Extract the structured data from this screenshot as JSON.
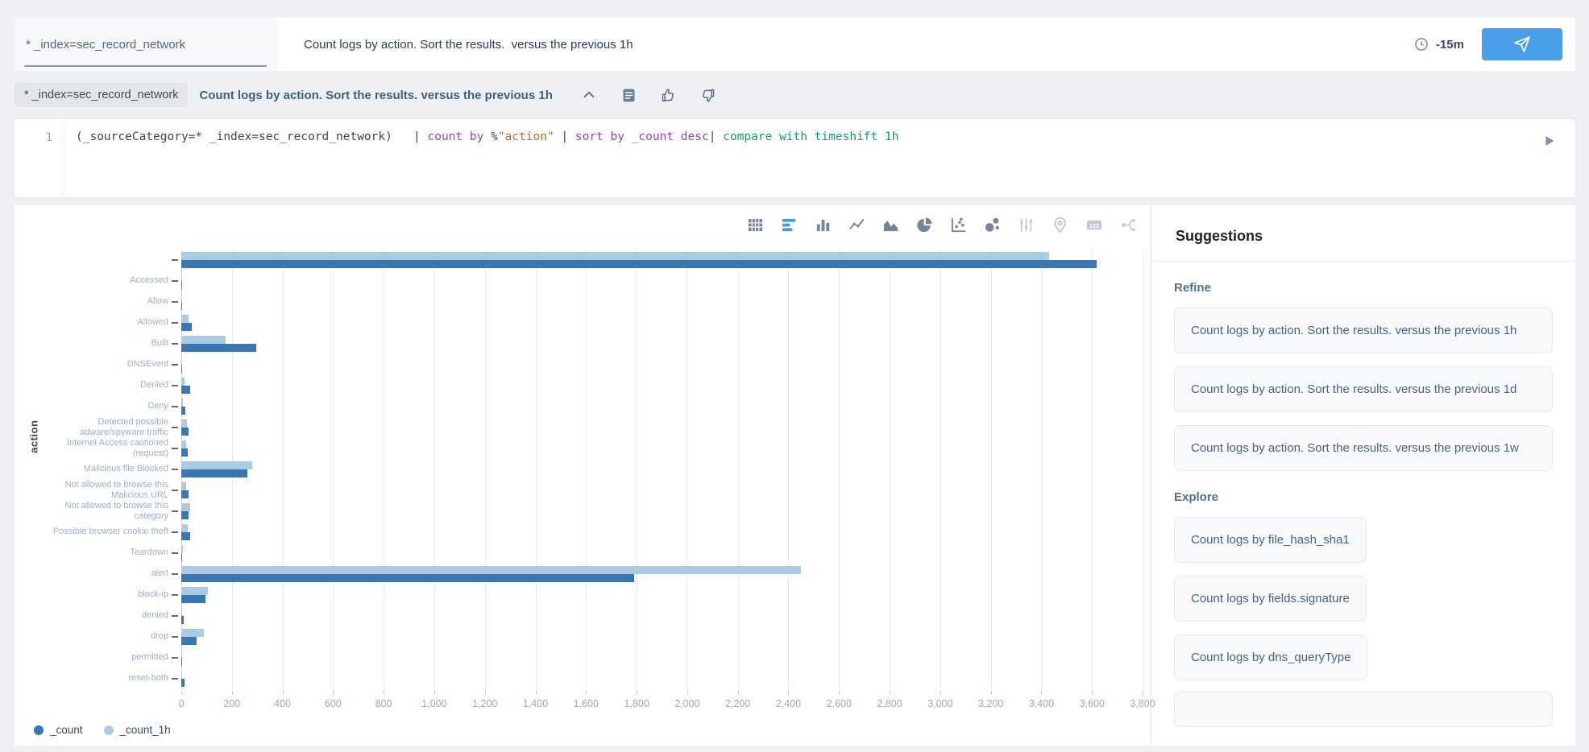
{
  "topbar": {
    "scope_value": "* _index=sec_record_network",
    "query_value": "Count logs by action. Sort the results.  versus the previous 1h",
    "time_label": "-15m"
  },
  "query_row": {
    "scope_chip": "* _index=sec_record_network",
    "query_text": "Count logs by action. Sort the results. versus the previous 1h",
    "icons": [
      "chevron-up-icon",
      "summary-icon",
      "thumbs-up-icon",
      "thumbs-down-icon"
    ]
  },
  "editor": {
    "line_number": "1",
    "run_icon": "play-icon",
    "tokens": [
      {
        "text": "(_sourceCategory=* _index=sec_record_network)   ",
        "color": "#3e4450"
      },
      {
        "text": "| ",
        "color": "#3e4450"
      },
      {
        "text": "count by ",
        "color": "#9b3fb5"
      },
      {
        "text": "%",
        "color": "#3e4450"
      },
      {
        "text": "\"action\"",
        "color": "#c2692e"
      },
      {
        "text": " | ",
        "color": "#3e4450"
      },
      {
        "text": "sort by _count desc",
        "color": "#9b3fb5"
      },
      {
        "text": "| ",
        "color": "#3e4450"
      },
      {
        "text": "compare with timeshift 1h",
        "color": "#169a70"
      }
    ]
  },
  "chart_toolbar": {
    "icons": [
      {
        "name": "table-icon",
        "state": "default"
      },
      {
        "name": "bar-chart-icon",
        "state": "active"
      },
      {
        "name": "column-chart-icon",
        "state": "default"
      },
      {
        "name": "line-chart-icon",
        "state": "default"
      },
      {
        "name": "area-chart-icon",
        "state": "default"
      },
      {
        "name": "pie-chart-icon",
        "state": "default"
      },
      {
        "name": "scatter-plot-icon",
        "state": "default"
      },
      {
        "name": "bubble-chart-icon",
        "state": "default"
      },
      {
        "name": "sliders-icon",
        "state": "disabled"
      },
      {
        "name": "map-pin-icon",
        "state": "disabled"
      },
      {
        "name": "single-value-icon",
        "state": "disabled"
      },
      {
        "name": "flow-diagram-icon",
        "state": "disabled"
      }
    ]
  },
  "chart_data": {
    "type": "bar",
    "orientation": "horizontal",
    "title": "",
    "xlabel": "",
    "ylabel": "action",
    "xlim": [
      0,
      3800
    ],
    "tick_step": 200,
    "grid": true,
    "legend_position": "bottom-left",
    "categories": [
      "",
      "Accessed",
      "Allow",
      "Allowed",
      "Built",
      "DNSEvent",
      "Denied",
      "Deny",
      "Detected possible adware/spyware traffic",
      "Internet Access cautioned (request)",
      "Malicious file Blocked",
      "Not allowed to browse this Malicious URL",
      "Not allowed to browse this category",
      "Possible browser cookie theft",
      "Teardown",
      "alert",
      "block-ip",
      "denied",
      "drop",
      "permitted",
      "reset-both"
    ],
    "series": [
      {
        "name": "_count",
        "color": "#3a76b4",
        "values": [
          3620,
          3,
          2,
          42,
          295,
          1,
          35,
          15,
          30,
          26,
          260,
          28,
          28,
          35,
          1,
          1790,
          95,
          10,
          60,
          1,
          14
        ]
      },
      {
        "name": "_count_1h",
        "color": "#a9cbe4",
        "values": [
          3430,
          2,
          4,
          30,
          175,
          1,
          12,
          5,
          22,
          20,
          280,
          20,
          35,
          26,
          6,
          2450,
          105,
          3,
          90,
          2,
          4
        ]
      }
    ]
  },
  "suggestions": {
    "title": "Suggestions",
    "sections": [
      {
        "label": "Refine",
        "layout": "block",
        "items": [
          "Count logs by action. Sort the results. versus the previous 1h",
          "Count logs by action. Sort the results. versus the previous 1d",
          "Count logs by action. Sort the results. versus the previous 1w"
        ]
      },
      {
        "label": "Explore",
        "layout": "inline",
        "partial_extra_card": true,
        "items": [
          "Count logs by file_hash_sha1",
          "Count logs by fields.signature",
          "Count logs by dns_queryType"
        ]
      }
    ]
  }
}
